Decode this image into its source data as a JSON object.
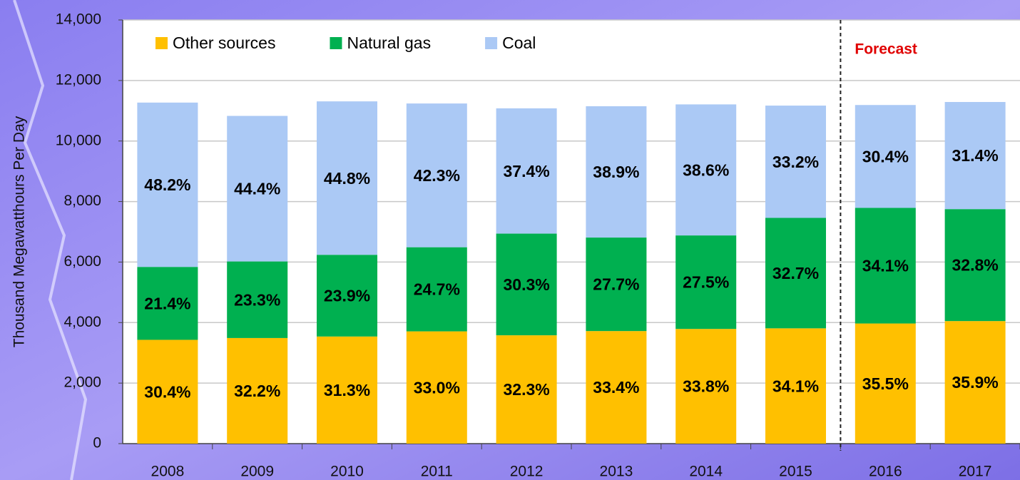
{
  "chart_data": {
    "type": "stacked_bar",
    "y_label": "Thousand Megawatthours Per Day",
    "categories": [
      "2008",
      "2009",
      "2010",
      "2011",
      "2012",
      "2013",
      "2014",
      "2015",
      "2016",
      "2017"
    ],
    "series": [
      {
        "name": "Other sources",
        "color": "#ffc000",
        "values": [
          3430,
          3490,
          3540,
          3710,
          3580,
          3720,
          3790,
          3810,
          3970,
          4050
        ],
        "labels": [
          "30.4%",
          "32.2%",
          "31.3%",
          "33.0%",
          "32.3%",
          "33.4%",
          "33.8%",
          "34.1%",
          "35.5%",
          "35.9%"
        ]
      },
      {
        "name": "Natural gas",
        "color": "#00b050",
        "values": [
          2410,
          2530,
          2700,
          2780,
          3360,
          3090,
          3090,
          3650,
          3820,
          3700
        ],
        "labels": [
          "21.4%",
          "23.3%",
          "23.9%",
          "24.7%",
          "30.3%",
          "27.7%",
          "27.5%",
          "32.7%",
          "34.1%",
          "32.8%"
        ]
      },
      {
        "name": "Coal",
        "color": "#abc9f5",
        "values": [
          5430,
          4810,
          5070,
          4750,
          4140,
          4340,
          4330,
          3710,
          3400,
          3540
        ],
        "labels": [
          "48.2%",
          "44.4%",
          "44.8%",
          "42.3%",
          "37.4%",
          "38.9%",
          "38.6%",
          "33.2%",
          "30.4%",
          "31.4%"
        ]
      }
    ],
    "ylim": [
      0,
      14000
    ],
    "yticks": [
      0,
      {
        "value": 2000,
        "label": "2,000"
      },
      {
        "value": 4000,
        "label": "4,000"
      },
      {
        "value": 6000,
        "label": "6,000"
      },
      {
        "value": 8000,
        "label": "8,000"
      },
      {
        "value": 10000,
        "label": "10,000"
      },
      {
        "value": 12000,
        "label": "12,000"
      },
      {
        "value": 14000,
        "label": "14,000"
      }
    ],
    "grid": true,
    "annotations": [
      {
        "text": "Forecast",
        "color": "#e00000",
        "x": "2016"
      }
    ]
  }
}
